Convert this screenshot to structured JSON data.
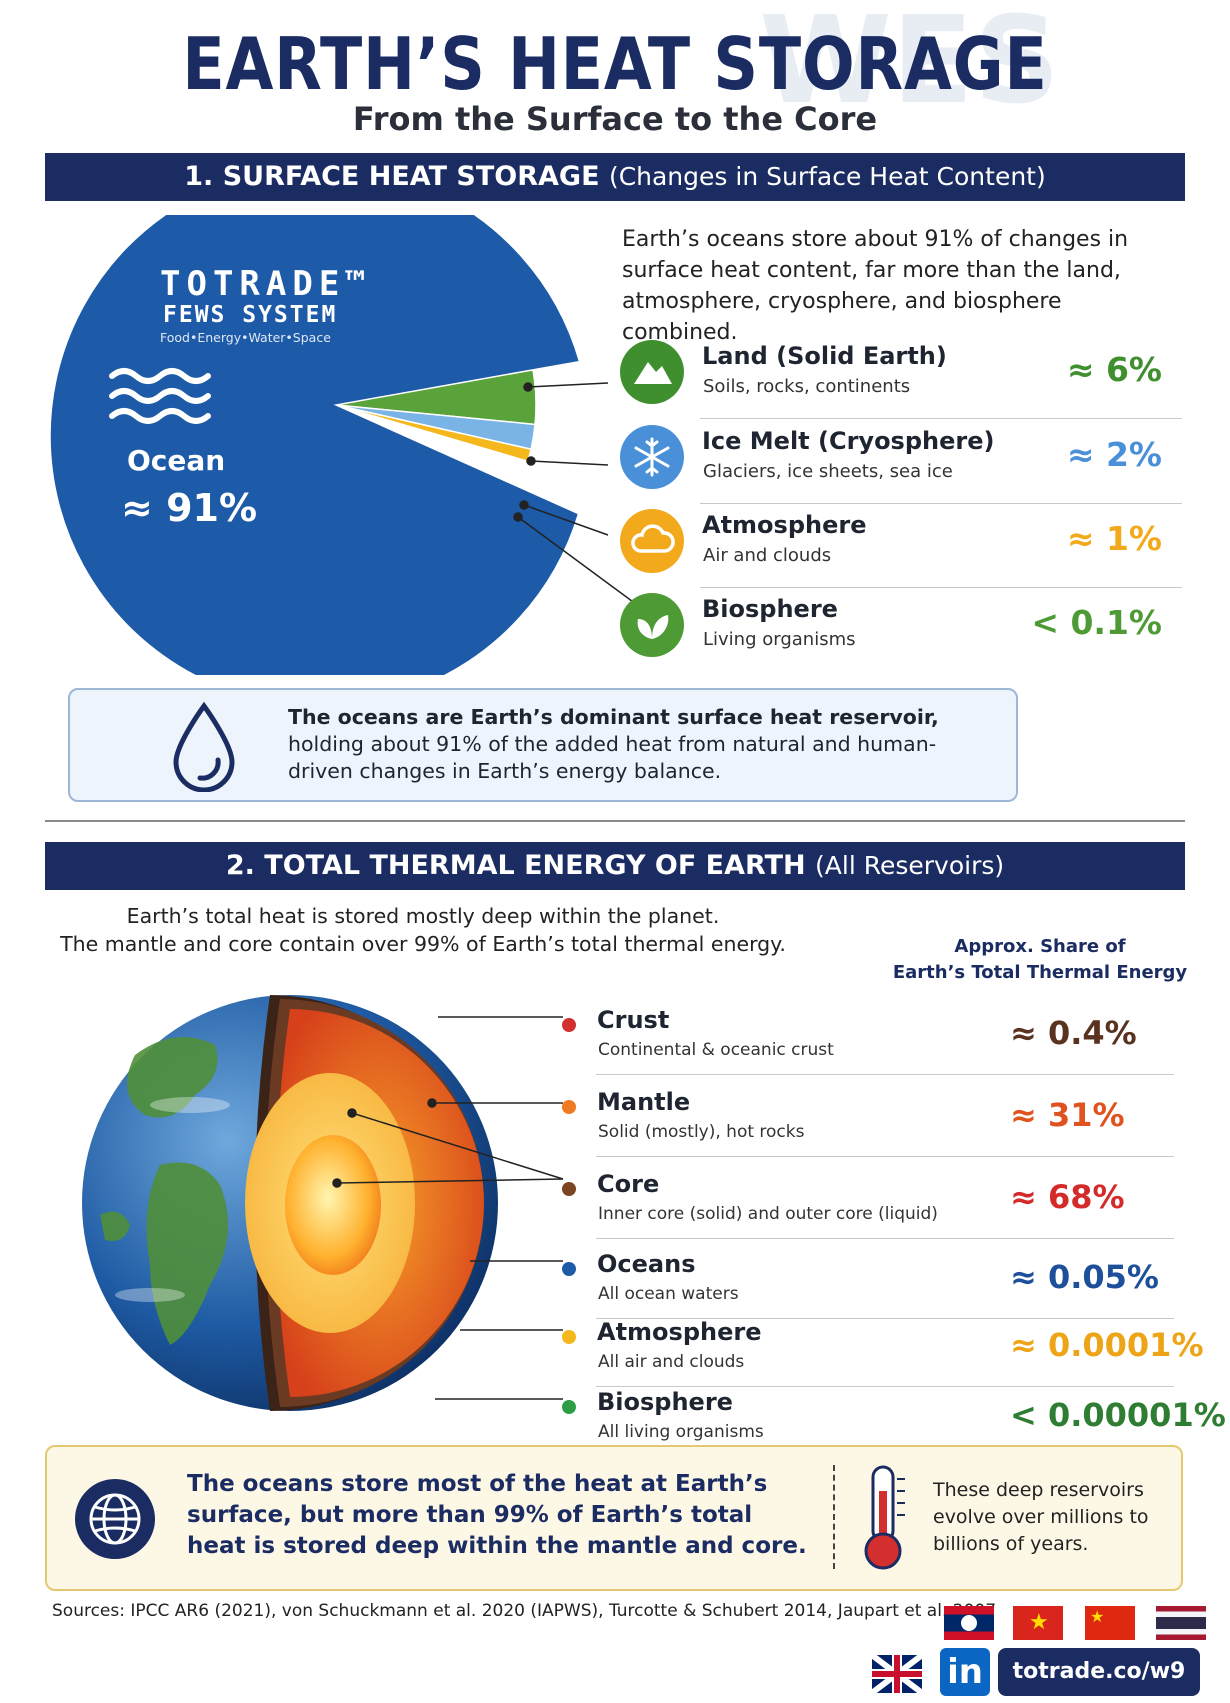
{
  "header": {
    "title": "EARTH’S HEAT STORAGE",
    "subtitle": "From the Surface to the Core",
    "watermark": "WES"
  },
  "section1": {
    "banner_main": "1. SURFACE HEAT STORAGE",
    "banner_paren": "(Changes in Surface Heat Content)",
    "intro": "Earth’s oceans store about 91% of changes in surface heat content, far more than the land, atmosphere, cryosphere, and biosphere combined.",
    "logo": {
      "name": "TOTRADE™",
      "system": "FEWS SYSTEM",
      "tagline": "Food•Energy•Water•Space"
    },
    "pie_label": "Ocean",
    "pie_value": "≈ 91%",
    "items": [
      {
        "title": "Land (Solid Earth)",
        "sub": "Soils, rocks, continents",
        "pct": "≈ 6%",
        "color": "#3f8f2f",
        "icon": "mountain-icon"
      },
      {
        "title": "Ice Melt (Cryosphere)",
        "sub": "Glaciers, ice sheets, sea ice",
        "pct": "≈ 2%",
        "color": "#4a90d9",
        "icon": "snowflake-icon"
      },
      {
        "title": "Atmosphere",
        "sub": "Air and clouds",
        "pct": "≈ 1%",
        "color": "#f2a91c",
        "icon": "cloud-icon"
      },
      {
        "title": "Biosphere",
        "sub": "Living organisms",
        "pct": "< 0.1%",
        "color": "#4e9a35",
        "icon": "leaf-icon"
      }
    ],
    "callout_bold": "The oceans are Earth’s dominant surface heat reservoir,",
    "callout_rest": "holding about 91% of the added heat from natural and human-driven changes in Earth’s energy balance."
  },
  "chart_data": {
    "type": "pie",
    "title": "",
    "slices": [
      {
        "label": "Ocean",
        "value": 91,
        "color": "#1d5aa8"
      },
      {
        "label": "Land (Solid Earth)",
        "value": 6,
        "color": "#5aa23a"
      },
      {
        "label": "Ice Melt (Cryosphere)",
        "value": 2,
        "color": "#7ab3e6"
      },
      {
        "label": "Atmosphere",
        "value": 1,
        "color": "#f4b71c"
      },
      {
        "label": "Biosphere",
        "value": 0.1,
        "color": "#4e9a35"
      }
    ]
  },
  "section2": {
    "banner_main": "2. TOTAL THERMAL ENERGY OF EARTH",
    "banner_paren": "(All Reservoirs)",
    "intro_line1": "Earth’s total heat is stored mostly deep within the planet.",
    "intro_line2": "The mantle and core contain over 99% of Earth’s total thermal energy.",
    "share_header_1": "Approx. Share of",
    "share_header_2": "Earth’s Total Thermal Energy",
    "items": [
      {
        "title": "Crust",
        "sub": "Continental & oceanic crust",
        "pct": "≈ 0.4%",
        "color": "#5a3320",
        "dot": "#d32f2f"
      },
      {
        "title": "Mantle",
        "sub": "Solid (mostly), hot rocks",
        "pct": "≈ 31%",
        "color": "#e0531e",
        "dot": "#f07a22"
      },
      {
        "title": "Core",
        "sub": "Inner core (solid) and outer core (liquid)",
        "pct": "≈ 68%",
        "color": "#d42a2a",
        "dot": "#7a4520"
      },
      {
        "title": "Oceans",
        "sub": "All ocean waters",
        "pct": "≈ 0.05%",
        "color": "#1d4f9a",
        "dot": "#1d5aa8"
      },
      {
        "title": "Atmosphere",
        "sub": "All air and clouds",
        "pct": "≈ 0.0001%",
        "color": "#eea417",
        "dot": "#f4b71c"
      },
      {
        "title": "Biosphere",
        "sub": "All living organisms",
        "pct": "< 0.00001%",
        "color": "#2f7d32",
        "dot": "#2e9e44"
      }
    ]
  },
  "bottom": {
    "main": "The oceans store most of the heat at Earth’s surface, but more than 99% of Earth’s total heat is stored deep within the mantle and core.",
    "side": "These deep reservoirs evolve over millions to billions of years."
  },
  "footer": {
    "sources": "Sources: IPCC AR6 (2021), von Schuckmann et al. 2020 (IAPWS), Turcotte & Schubert 2014, Jaupart et al. 2007",
    "link": "totrade.co/w9",
    "linkedin": "in"
  }
}
